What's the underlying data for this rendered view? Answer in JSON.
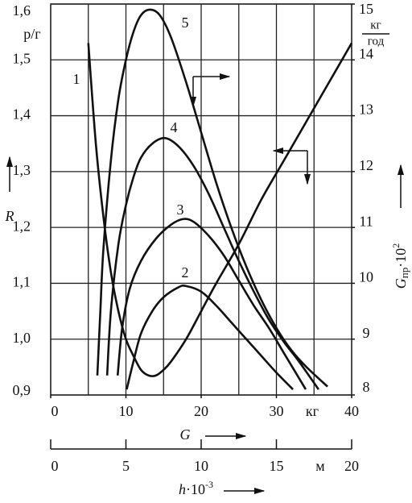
{
  "chart_data": {
    "type": "line",
    "x_label": "G",
    "x_unit": "кг",
    "xlim": [
      0,
      40
    ],
    "xticks": [
      0,
      10,
      20,
      30,
      40
    ],
    "xgrid": [
      5,
      10,
      15,
      20,
      25,
      30,
      35
    ],
    "x2_label": "h",
    "x2_label_mult": "·10",
    "x2_label_sup": "-3",
    "x2_unit": "м",
    "x2lim": [
      0,
      20
    ],
    "x2ticks": [
      0,
      5,
      10,
      15,
      20
    ],
    "y_label": "R",
    "y_unit": "р/г",
    "ylim": [
      0.9,
      1.6
    ],
    "yticks": [
      {
        "value": 0.9,
        "label": "0,9"
      },
      {
        "value": 1.0,
        "label": "1,0"
      },
      {
        "value": 1.1,
        "label": "1,1"
      },
      {
        "value": 1.2,
        "label": "1,2"
      },
      {
        "value": 1.3,
        "label": "1,3"
      },
      {
        "value": 1.4,
        "label": "1,4"
      },
      {
        "value": 1.5,
        "label": "1,5"
      },
      {
        "value": 1.6,
        "label": "1,6"
      }
    ],
    "y2_label": "G",
    "y2_label_sub": "пр",
    "y2_label_mult": "·10",
    "y2_label_sup": "2",
    "y2_unit_num": "кг",
    "y2_unit_den": "год",
    "y2lim": [
      8,
      15
    ],
    "y2ticks": [
      8,
      9,
      10,
      11,
      12,
      13,
      14,
      15
    ],
    "grid": true,
    "series": [
      {
        "name": "1",
        "color": "#111",
        "axis": "y",
        "x": [
          5,
          6,
          7,
          8,
          9,
          10,
          11,
          12,
          13,
          14,
          15,
          16,
          18,
          20,
          22,
          25,
          28,
          31,
          34,
          37,
          40
        ],
        "values": [
          1.53,
          1.35,
          1.22,
          1.12,
          1.05,
          1.0,
          0.97,
          0.945,
          0.935,
          0.935,
          0.945,
          0.96,
          1.0,
          1.05,
          1.1,
          1.17,
          1.25,
          1.32,
          1.39,
          1.46,
          1.53
        ]
      },
      {
        "name": "2",
        "color": "#111",
        "axis": "y2",
        "x": [
          10.1,
          11,
          12,
          13.5,
          15,
          17,
          18,
          20,
          22,
          24,
          26,
          28,
          30,
          32.2
        ],
        "values": [
          8.1,
          8.6,
          9.1,
          9.5,
          9.75,
          9.93,
          9.95,
          9.85,
          9.6,
          9.3,
          9.0,
          8.7,
          8.4,
          8.1
        ]
      },
      {
        "name": "3",
        "color": "#111",
        "axis": "y2",
        "x": [
          8.9,
          9.5,
          10.5,
          12,
          14,
          16,
          17.6,
          19,
          21,
          23,
          25,
          27,
          29,
          31,
          33.9
        ],
        "values": [
          8.35,
          9.2,
          9.9,
          10.4,
          10.8,
          11.05,
          11.15,
          11.1,
          10.85,
          10.5,
          10.05,
          9.6,
          9.2,
          8.75,
          8.1
        ]
      },
      {
        "name": "4",
        "color": "#111",
        "axis": "y2",
        "x": [
          7.5,
          8,
          9,
          10,
          11,
          12,
          13.5,
          15.2,
          17,
          19,
          21,
          23,
          25,
          27,
          29,
          31,
          33,
          35.6
        ],
        "values": [
          8.35,
          9.5,
          10.7,
          11.4,
          11.9,
          12.25,
          12.5,
          12.6,
          12.45,
          12.1,
          11.6,
          11.0,
          10.4,
          9.85,
          9.35,
          8.95,
          8.6,
          8.1
        ]
      },
      {
        "name": "5",
        "color": "#111",
        "axis": "y2",
        "x": [
          6.2,
          6.6,
          7,
          8,
          9,
          10,
          11,
          12,
          13.2,
          14.5,
          16,
          18,
          20,
          22,
          24,
          26,
          28,
          30,
          32,
          34,
          36.8
        ],
        "values": [
          8.35,
          9.5,
          10.6,
          12.2,
          13.3,
          14.0,
          14.5,
          14.8,
          14.9,
          14.8,
          14.4,
          13.6,
          12.7,
          11.8,
          11.0,
          10.3,
          9.7,
          9.2,
          8.8,
          8.5,
          8.15
        ]
      }
    ]
  }
}
